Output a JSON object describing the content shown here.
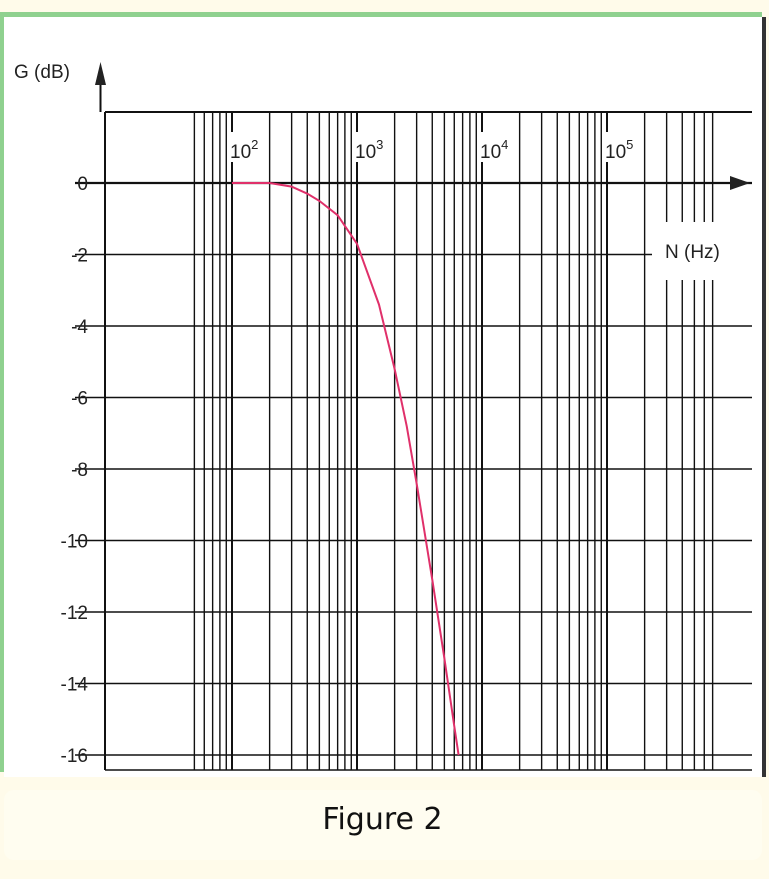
{
  "colors": {
    "background": "#fff9e6",
    "frame_green": "#7fc97f",
    "grid": "#111111",
    "curve": "#e0306a",
    "plot_bg": "#ffffff"
  },
  "caption": "Figure 2",
  "chart_data": {
    "type": "line",
    "title": "",
    "ylabel": "G (dB)",
    "xlabel": "N (Hz)",
    "x_scale": "log",
    "xlim": [
      10,
      1000000
    ],
    "ylim": [
      -16,
      2
    ],
    "x_tick_labels": [
      {
        "base": "10",
        "exp": "2",
        "value": 100
      },
      {
        "base": "10",
        "exp": "3",
        "value": 1000
      },
      {
        "base": "10",
        "exp": "4",
        "value": 10000
      },
      {
        "base": "10",
        "exp": "5",
        "value": 100000
      }
    ],
    "y_ticks": [
      0,
      -2,
      -4,
      -6,
      -8,
      -10,
      -12,
      -14,
      -16
    ],
    "y_tick_labels": [
      "0",
      "-2",
      "-4",
      "-6",
      "-8",
      "-10",
      "-12",
      "-14",
      "-16"
    ],
    "grid": true,
    "series": [
      {
        "color": "#e0306a",
        "x": [
          100,
          150,
          200,
          300,
          400,
          500,
          700,
          1000,
          1500,
          2000,
          2500,
          3000,
          4000,
          5000,
          6000,
          6500
        ],
        "y": [
          0,
          0,
          0,
          -0.1,
          -0.3,
          -0.5,
          -0.9,
          -1.7,
          -3.4,
          -5.2,
          -6.8,
          -8.4,
          -11.1,
          -13.3,
          -15.2,
          -16
        ]
      }
    ]
  }
}
